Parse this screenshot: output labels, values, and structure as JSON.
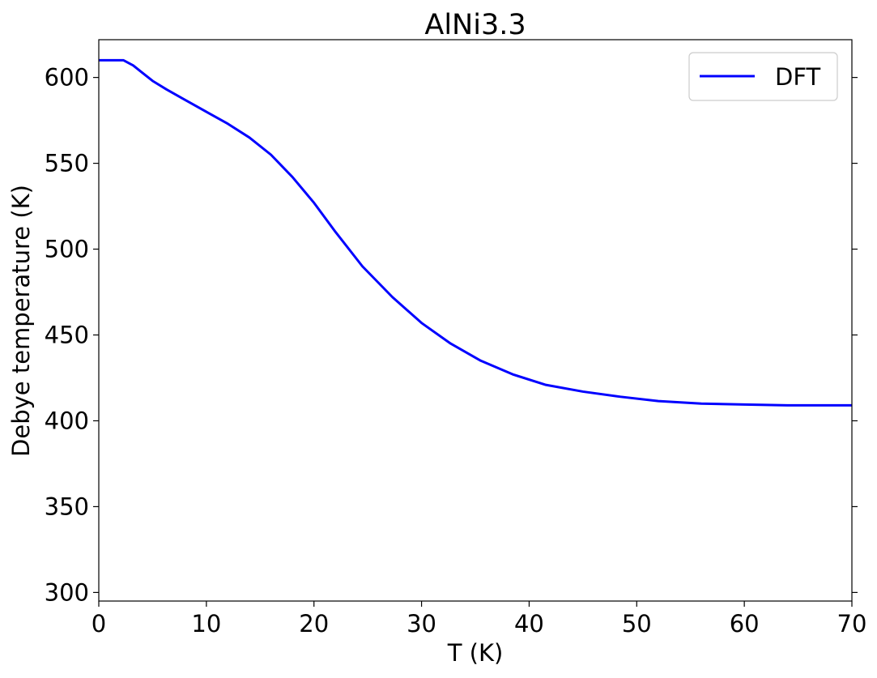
{
  "chart_data": {
    "type": "line",
    "title": "AlNi3.3",
    "xlabel": "T (K)",
    "ylabel": "Debye temperature (K)",
    "xlim": [
      0,
      70
    ],
    "ylim": [
      295,
      622
    ],
    "xticks": [
      0,
      10,
      20,
      30,
      40,
      50,
      60,
      70
    ],
    "yticks": [
      300,
      350,
      400,
      450,
      500,
      550,
      600
    ],
    "grid": false,
    "legend_position": "top-right",
    "series": [
      {
        "name": "DFT",
        "color": "#0000ff",
        "x": [
          0,
          1,
          2.3,
          3.2,
          4,
          5,
          6.3,
          8,
          10,
          12,
          14,
          16,
          18,
          20,
          22,
          24.5,
          27.3,
          30,
          32.7,
          35.5,
          38.5,
          41.5,
          45,
          48.5,
          52,
          56,
          60,
          64,
          67,
          70
        ],
        "y": [
          610,
          610,
          610,
          607,
          603,
          598,
          593,
          587,
          580,
          573,
          565,
          555,
          542,
          527,
          510,
          490,
          472,
          457,
          445,
          435,
          427,
          421,
          417,
          414,
          411.5,
          410,
          409.5,
          409,
          409,
          409
        ]
      }
    ]
  }
}
